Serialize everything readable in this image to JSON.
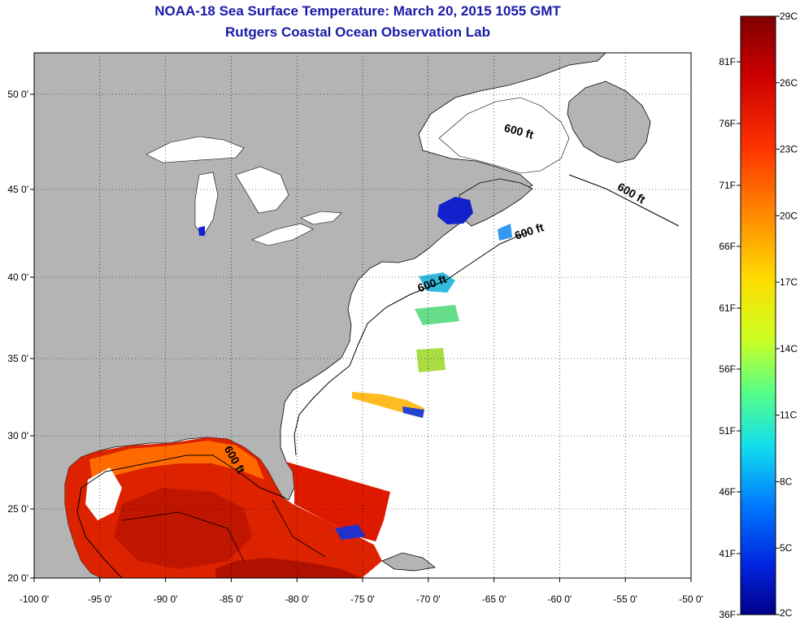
{
  "title_line1": "NOAA-18 Sea Surface Temperature:  March 20, 2015 1055 GMT",
  "title_line2": "Rutgers Coastal Ocean Observation Lab",
  "map": {
    "lon_ticks": [
      "-100 0'",
      "-95 0'",
      "-90 0'",
      "-85 0'",
      "-80 0'",
      "-75 0'",
      "-70 0'",
      "-65 0'",
      "-60 0'",
      "-55 0'",
      "-50 0'"
    ],
    "lat_ticks": [
      "50 0'",
      "45 0'",
      "40 0'",
      "35 0'",
      "30 0'",
      "25 0'",
      "20 0'"
    ],
    "land_color": "#b4b4b4",
    "contour_label": "600 ft",
    "contour_labels": [
      "600 ft",
      "600 ft",
      "600 ft",
      "600 ft",
      "600 ft"
    ]
  },
  "colorbar": {
    "celsius_labels": [
      "29C",
      "26C",
      "23C",
      "20C",
      "17C",
      "14C",
      "11C",
      "8C",
      "5C",
      "2C"
    ],
    "fahrenheit_labels": [
      "81F",
      "76F",
      "71F",
      "66F",
      "61F",
      "56F",
      "51F",
      "46F",
      "41F",
      "36F"
    ],
    "colors": [
      "#7f0000",
      "#cc0000",
      "#ff3300",
      "#ff8800",
      "#ffdd00",
      "#ccff22",
      "#55ff88",
      "#11ddee",
      "#0077ff",
      "#0022dd",
      "#000088"
    ]
  }
}
